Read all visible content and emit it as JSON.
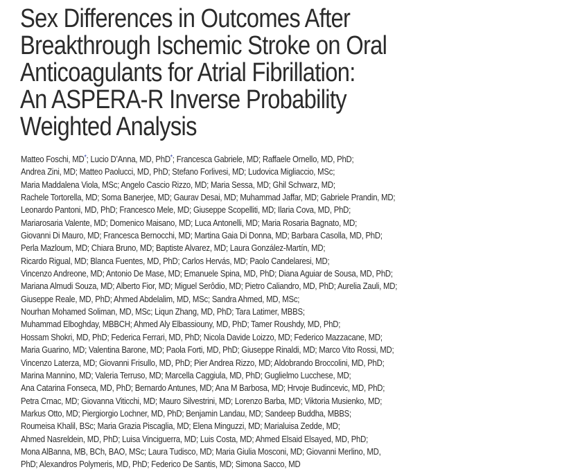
{
  "article": {
    "title_lines": [
      "Sex Differences in Outcomes After",
      "Breakthrough Ischemic Stroke on Oral",
      "Anticoagulants for Atrial Fibrillation:",
      "An ASPERA-R Inverse Probability",
      "Weighted Analysis"
    ],
    "equal_contribution_marker": "*",
    "marker_color": "#2a3fa8",
    "author_lines": [
      [
        {
          "text": "Matteo Foschi, MD"
        },
        {
          "text": "*",
          "star": true
        },
        {
          "text": "; Lucio D’Anna, MD, PhD"
        },
        {
          "text": "*",
          "star": true
        },
        {
          "text": "; Francesca Gabriele, MD; Raffaele Ornello, MD, PhD;"
        }
      ],
      [
        {
          "text": "Andrea Zini, MD; Matteo Paolucci, MD, PhD; Stefano Forlivesi, MD; Ludovica Migliaccio, MSc;"
        }
      ],
      [
        {
          "text": "Maria Maddalena Viola, MSc; Angelo Cascio Rizzo, MD; Maria Sessa, MD; Ghil Schwarz, MD;"
        }
      ],
      [
        {
          "text": "Rachele Tortorella, MD; Soma Banerjee, MD; Gaurav Desai, MD; Muhammad Jaffar, MD; Gabriele Prandin, MD;"
        }
      ],
      [
        {
          "text": "Leonardo Pantoni, MD, PhD; Francesco Mele, MD; Giuseppe Scopelliti, MD; Ilaria Cova, MD, PhD;"
        }
      ],
      [
        {
          "text": "Mariarosaria Valente, MD; Domenico Maisano, MD; Luca Antonelli, MD; Maria Rosaria Bagnato, MD;"
        }
      ],
      [
        {
          "text": "Giovanni Di Mauro, MD; Francesca Bernocchi, MD; Martina Gaia Di Donna, MD; Barbara Casolla, MD, PhD;"
        }
      ],
      [
        {
          "text": "Perla Mazloum, MD; Chiara Bruno, MD; Baptiste Alvarez, MD; Laura González-Martín, MD;"
        }
      ],
      [
        {
          "text": "Ricardo Rigual, MD; Blanca Fuentes, MD, PhD; Carlos Hervás, MD; Paolo Candelaresi, MD;"
        }
      ],
      [
        {
          "text": "Vincenzo Andreone, MD; Antonio De Mase, MD; Emanuele Spina, MD, PhD; Diana Aguiar de Sousa, MD, PhD;"
        }
      ],
      [
        {
          "text": "Mariana Almudi Souza, MD; Alberto Fior, MD; Miguel Serôdio, MD; Pietro Caliandro, MD, PhD; Aurelia Zauli, MD;"
        }
      ],
      [
        {
          "text": "Giuseppe Reale, MD, PhD; Ahmed Abdelalim, MD, MSc; Sandra Ahmed, MD, MSc;"
        }
      ],
      [
        {
          "text": "Nourhan Mohamed Soliman, MD, MSc; Liqun Zhang, MD, PhD; Tara Latimer, MBBS;"
        }
      ],
      [
        {
          "text": "Muhammad Elboghday, MBBCH; Ahmed Aly Elbassiouny, MD, PhD; Tamer Roushdy, MD, PhD;"
        }
      ],
      [
        {
          "text": "Hossam Shokri, MD, PhD; Federica Ferrari, MD, PhD; Nicola Davide Loizzo, MD; Federico Mazzacane, MD;"
        }
      ],
      [
        {
          "text": "Maria Guarino, MD; Valentina Barone, MD; Paola Forti, MD, PhD; Giuseppe Rinaldi, MD; Marco Vito Rossi, MD;"
        }
      ],
      [
        {
          "text": "Vincenzo Laterza, MD; Giovanni Frisullo, MD, PhD; Pier Andrea Rizzo, MD; Aldobrando Broccolini, MD, PhD;"
        }
      ],
      [
        {
          "text": "Marina Mannino, MD; Valeria Terruso, MD; Marcella Caggiula, MD, PhD; Guglielmo Lucchese, MD;"
        }
      ],
      [
        {
          "text": "Ana Catarina Fonseca, MD, PhD; Bernardo Antunes, MD; Ana M Barbosa, MD; Hrvoje Budincevic, MD, PhD;"
        }
      ],
      [
        {
          "text": "Petra Crnac, MD; Giovanna Viticchi, MD; Mauro Silvestrini, MD; Lorenzo Barba, MD; Viktoria Musienko, MD;"
        }
      ],
      [
        {
          "text": "Markus Otto, MD; Piergiorgio Lochner, MD, PhD; Benjamin Landau, MD; Sandeep Buddha, MBBS;"
        }
      ],
      [
        {
          "text": "Roumeisa Khalil, BSc; Maria Grazia Piscaglia, MD; Elena Minguzzi, MD; Marialuisa Zedde, MD;"
        }
      ],
      [
        {
          "text": "Ahmed Nasreldein, MD, PhD; Luisa Vinciguerra, MD; Luis Costa, MD; Ahmed Elsaid Elsayed, MD, PhD;"
        }
      ],
      [
        {
          "text": "Mona AlBanna, MB, BCh, BAO, MSc; Laura Tudisco, MD; Maria Giulia Mosconi, MD; Giovanni Merlino, MD,"
        }
      ],
      [
        {
          "text": "PhD; Alexandros Polymeris, MD, PhD; Federico De Santis, MD; Simona Sacco, MD"
        }
      ]
    ]
  }
}
